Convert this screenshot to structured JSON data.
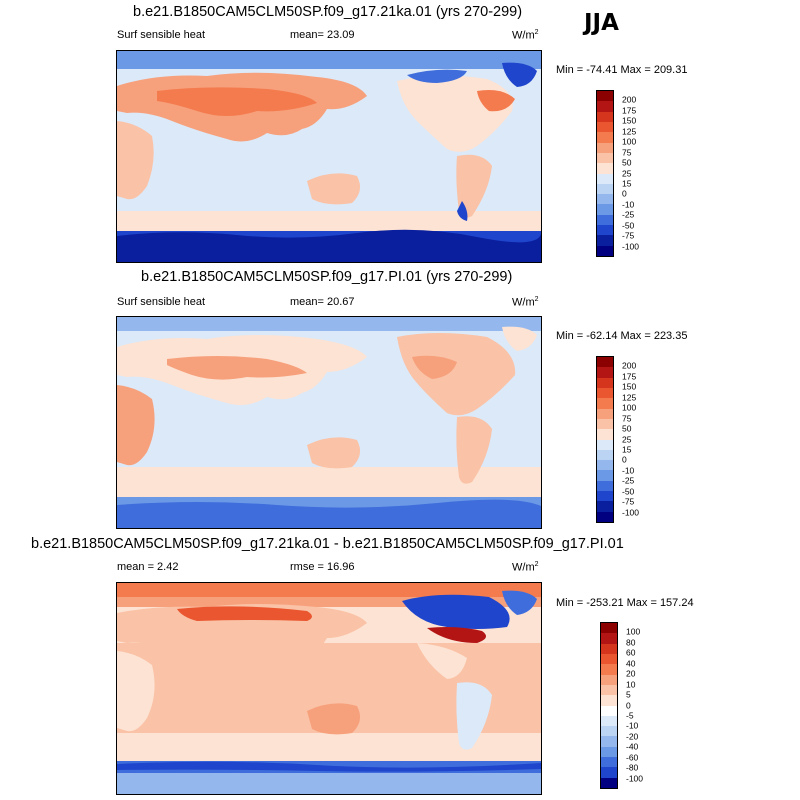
{
  "season": "JJA",
  "panels": [
    {
      "title": "b.e21.B1850CAM5CLM50SP.f09_g17.21ka.01 (yrs 270-299)",
      "left": "Surf sensible heat",
      "center": "mean=  23.09",
      "units": "W/m",
      "units_sup": "2",
      "minmax": "Min = -74.41 Max = 209.31",
      "levels": [
        "200",
        "175",
        "150",
        "125",
        "100",
        "75",
        "50",
        "25",
        "15",
        "0",
        "-10",
        "-25",
        "-50",
        "-75",
        "-100"
      ],
      "colors": [
        "#8b0000",
        "#b31515",
        "#d4351c",
        "#e9562f",
        "#f47b4e",
        "#f7a07c",
        "#fac2a6",
        "#fde3d3",
        "#dce9f8",
        "#bcd4f4",
        "#94b8ee",
        "#6c99e6",
        "#3f6edc",
        "#1f45cc",
        "#0a1f9e",
        "#000080"
      ]
    },
    {
      "title": "b.e21.B1850CAM5CLM50SP.f09_g17.PI.01 (yrs 270-299)",
      "left": "Surf sensible heat",
      "center": "mean=  20.67",
      "units": "W/m",
      "units_sup": "2",
      "minmax": "Min = -62.14 Max = 223.35",
      "levels": [
        "200",
        "175",
        "150",
        "125",
        "100",
        "75",
        "50",
        "25",
        "15",
        "0",
        "-10",
        "-25",
        "-50",
        "-75",
        "-100"
      ],
      "colors": [
        "#8b0000",
        "#b31515",
        "#d4351c",
        "#e9562f",
        "#f47b4e",
        "#f7a07c",
        "#fac2a6",
        "#fde3d3",
        "#dce9f8",
        "#bcd4f4",
        "#94b8ee",
        "#6c99e6",
        "#3f6edc",
        "#1f45cc",
        "#0a1f9e",
        "#000080"
      ]
    },
    {
      "title": "b.e21.B1850CAM5CLM50SP.f09_g17.21ka.01 - b.e21.B1850CAM5CLM50SP.f09_g17.PI.01",
      "left": "mean =   2.42",
      "center": "rmse =  16.96",
      "units": "W/m",
      "units_sup": "2",
      "minmax": "Min = -253.21 Max = 157.24",
      "levels": [
        "100",
        "80",
        "60",
        "40",
        "20",
        "10",
        "5",
        "0",
        "-5",
        "-10",
        "-20",
        "-40",
        "-60",
        "-80",
        "-100"
      ],
      "colors": [
        "#8b0000",
        "#b31515",
        "#d4351c",
        "#e9562f",
        "#f47b4e",
        "#f7a07c",
        "#fac2a6",
        "#fde3d3",
        "#ffffff",
        "#dce9f8",
        "#bcd4f4",
        "#94b8ee",
        "#6c99e6",
        "#3f6edc",
        "#1f45cc",
        "#000080"
      ]
    }
  ]
}
